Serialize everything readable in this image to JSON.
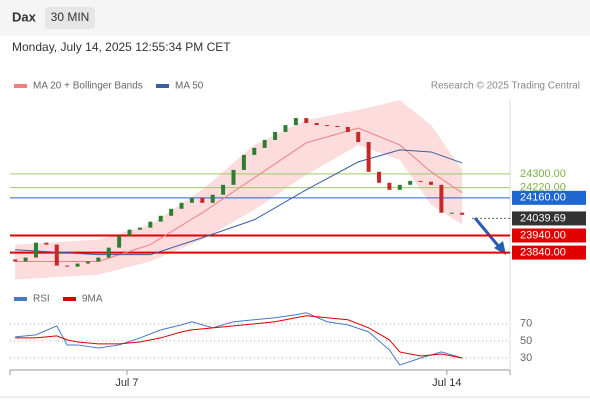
{
  "chart_data": {
    "type": "candlestick",
    "title": "Dax",
    "timeframe": "30 MIN",
    "subtitle": "Monday, July 14, 2025 12:55:34 PM CET",
    "credit": "Research © 2025 Trading Central",
    "ylim": [
      23680,
      24790
    ],
    "xlim": [
      -0.5,
      47.6
    ],
    "xticks": [
      {
        "value": 10.75,
        "label": "Jul 7"
      },
      {
        "value": 41.52,
        "label": "Jul 14"
      }
    ],
    "up_color": "#2e7d32",
    "down_color": "#c62828",
    "candles": {
      "open": [
        23800,
        23788,
        23811,
        23898,
        23887,
        23764,
        23758,
        23776,
        23788,
        23811,
        23869,
        23939,
        23974,
        23986,
        24021,
        24055,
        24096,
        24131,
        24160,
        24131,
        24178,
        24236,
        24323,
        24411,
        24452,
        24498,
        24545,
        24585,
        24626,
        24597,
        24585,
        24580,
        24574,
        24545,
        24486,
        24312,
        24248,
        24207,
        24236,
        24259,
        24254,
        24236,
        24073,
        24073
      ],
      "close": [
        23788,
        23811,
        23898,
        23887,
        23764,
        23758,
        23776,
        23788,
        23811,
        23869,
        23939,
        23974,
        23986,
        24021,
        24055,
        24096,
        24131,
        24160,
        24131,
        24178,
        24236,
        24323,
        24411,
        24452,
        24498,
        24545,
        24585,
        24626,
        24597,
        24585,
        24580,
        24574,
        24545,
        24486,
        24312,
        24248,
        24207,
        24236,
        24259,
        24254,
        24236,
        24073,
        24073,
        24061
      ]
    },
    "overlays": [
      {
        "name": "MA 20 + Bollinger Bands",
        "color": "#f08080",
        "x": [
          0,
          8,
          13,
          18,
          23,
          28,
          33,
          37,
          40,
          43
        ],
        "values": [
          23788,
          23788,
          23887,
          24073,
          24277,
          24481,
          24568,
          24469,
          24312,
          24189
        ],
        "upper": [
          23887,
          23916,
          24003,
          24207,
          24469,
          24615,
          24673,
          24731,
          24585,
          24323
        ],
        "lower": [
          23683,
          23711,
          23788,
          23916,
          24090,
          24294,
          24469,
          24382,
          24120,
          24003
        ]
      },
      {
        "name": "MA 50",
        "color": "#3a5fa0",
        "x": [
          0,
          8,
          13,
          18,
          23,
          28,
          33,
          37,
          40,
          43
        ],
        "values": [
          23857,
          23828,
          23828,
          23927,
          24032,
          24207,
          24370,
          24440,
          24428,
          24364
        ]
      }
    ],
    "levels": [
      {
        "value": 24300,
        "label": "24300.00",
        "color": "#9ccc65",
        "style": "text"
      },
      {
        "value": 24220,
        "label": "24220.00",
        "color": "#9ccc65",
        "style": "text"
      },
      {
        "value": 24160,
        "label": "24160.00",
        "color": "#1e66d0",
        "style": "box"
      },
      {
        "value": 24039.69,
        "label": "24039.69",
        "color": "#333333",
        "style": "box-dotted"
      },
      {
        "value": 23940,
        "label": "23940.00",
        "color": "#e00000",
        "style": "box"
      },
      {
        "value": 23840,
        "label": "23840.00",
        "color": "#e00000",
        "style": "box"
      }
    ],
    "rsi": {
      "ylim": [
        16,
        92
      ],
      "yticks": [
        30,
        50,
        70
      ],
      "x": [
        0,
        2,
        4,
        5,
        6,
        8,
        10,
        12,
        14,
        16,
        17,
        19,
        21,
        23,
        25,
        27,
        28,
        30,
        32,
        34,
        36,
        37,
        39,
        41,
        43
      ],
      "series": [
        {
          "name": "RSI",
          "color": "#4a78c8",
          "values": [
            54.7,
            57.1,
            67.6,
            45.3,
            45.3,
            41.8,
            45.3,
            53.5,
            62.9,
            68.8,
            72.4,
            65.3,
            72.4,
            74.7,
            77.1,
            80.6,
            82.9,
            72.4,
            68.8,
            60.6,
            39.4,
            21.8,
            30.0,
            37.1,
            30.0
          ]
        },
        {
          "name": "9MA",
          "color": "#e00000",
          "values": [
            53.5,
            53.5,
            55.9,
            51.2,
            48.8,
            46.5,
            46.5,
            48.8,
            53.5,
            60.6,
            62.9,
            65.3,
            67.6,
            70.0,
            72.4,
            77.1,
            79.4,
            77.1,
            74.7,
            65.3,
            51.2,
            37.1,
            32.4,
            34.7,
            30.0
          ]
        }
      ]
    }
  }
}
